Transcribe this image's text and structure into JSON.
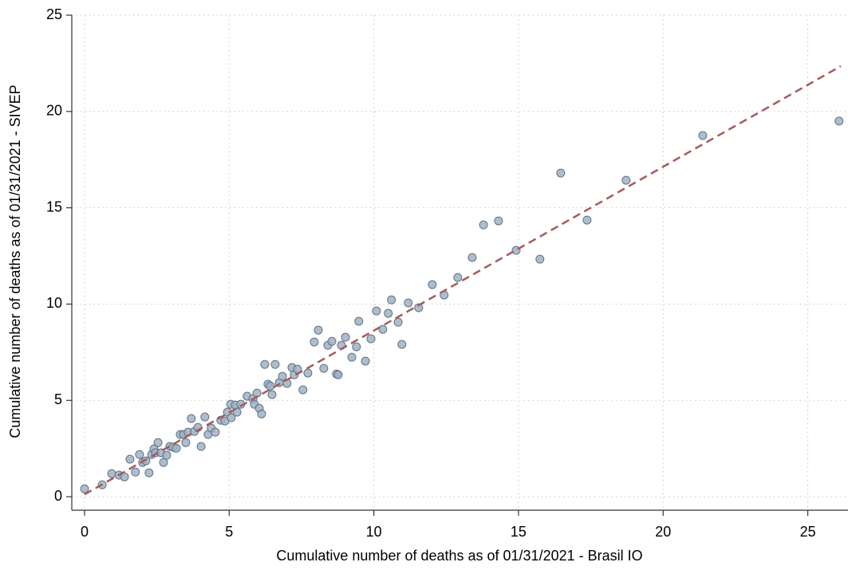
{
  "chart_data": {
    "type": "scatter",
    "x_label": "Cumulative number of deaths as of 01/31/2021 - Brasil IO",
    "y_label": "Cumulative number of deaths as of 01/31/2021 - SIVEP",
    "xlim": [
      -0.44,
      26.39
    ],
    "ylim": [
      -0.7,
      25
    ],
    "xticks": [
      0,
      5,
      10,
      15,
      20,
      25
    ],
    "yticks": [
      0,
      5,
      10,
      15,
      20,
      25
    ],
    "grid": true,
    "series": [
      {
        "mode": "markers",
        "color": "#9fb2c3",
        "x": [
          0,
          0.61,
          0.94,
          1.19,
          1.38,
          1.57,
          1.76,
          1.9,
          2.01,
          2.12,
          2.23,
          2.32,
          2.4,
          2.45,
          2.54,
          2.65,
          2.73,
          2.84,
          2.95,
          3.06,
          3.17,
          3.31,
          3.42,
          3.5,
          3.58,
          3.69,
          3.8,
          3.92,
          4.03,
          4.16,
          4.27,
          4.38,
          4.52,
          4.71,
          4.85,
          4.94,
          5.05,
          5.07,
          5.21,
          5.27,
          5.4,
          5.62,
          5.82,
          5.87,
          5.96,
          6.04,
          6.12,
          6.23,
          6.34,
          6.42,
          6.48,
          6.59,
          6.73,
          6.84,
          7.0,
          7.17,
          7.25,
          7.36,
          7.55,
          7.72,
          7.94,
          8.08,
          8.27,
          8.41,
          8.55,
          8.71,
          8.77,
          8.88,
          9.02,
          9.24,
          9.4,
          9.48,
          9.71,
          9.9,
          10.09,
          10.31,
          10.5,
          10.61,
          10.84,
          10.97,
          11.19,
          11.55,
          12.02,
          12.43,
          12.9,
          13.4,
          13.79,
          14.31,
          14.92,
          15.74,
          16.46,
          17.37,
          18.72,
          21.37,
          26.08
        ],
        "values": [
          0.41,
          0.62,
          1.2,
          1.12,
          1.03,
          1.95,
          1.28,
          2.19,
          1.78,
          1.86,
          1.24,
          2.19,
          2.48,
          2.28,
          2.81,
          2.28,
          1.78,
          2.15,
          2.61,
          2.57,
          2.52,
          3.23,
          3.23,
          2.81,
          3.35,
          4.06,
          3.39,
          3.6,
          2.61,
          4.14,
          3.23,
          3.56,
          3.35,
          3.97,
          3.93,
          4.39,
          4.8,
          4.1,
          4.76,
          4.39,
          4.8,
          5.22,
          5.09,
          4.8,
          5.38,
          4.59,
          4.3,
          6.87,
          5.84,
          5.75,
          5.3,
          6.87,
          5.92,
          6.25,
          5.88,
          6.71,
          6.33,
          6.62,
          5.55,
          6.42,
          8.03,
          8.65,
          6.66,
          7.86,
          8.07,
          6.37,
          6.33,
          7.86,
          8.28,
          7.24,
          7.78,
          9.11,
          7.04,
          8.2,
          9.64,
          8.69,
          9.52,
          10.22,
          9.06,
          7.91,
          10.06,
          9.81,
          11.01,
          10.47,
          11.38,
          12.42,
          14.11,
          14.32,
          12.79,
          12.33,
          16.8,
          14.36,
          16.43,
          18.75,
          19.5
        ]
      },
      {
        "mode": "dashed-line",
        "color": "#a85a5a",
        "x": [
          0,
          26.14
        ],
        "values": [
          0.12,
          22.35
        ]
      }
    ]
  }
}
